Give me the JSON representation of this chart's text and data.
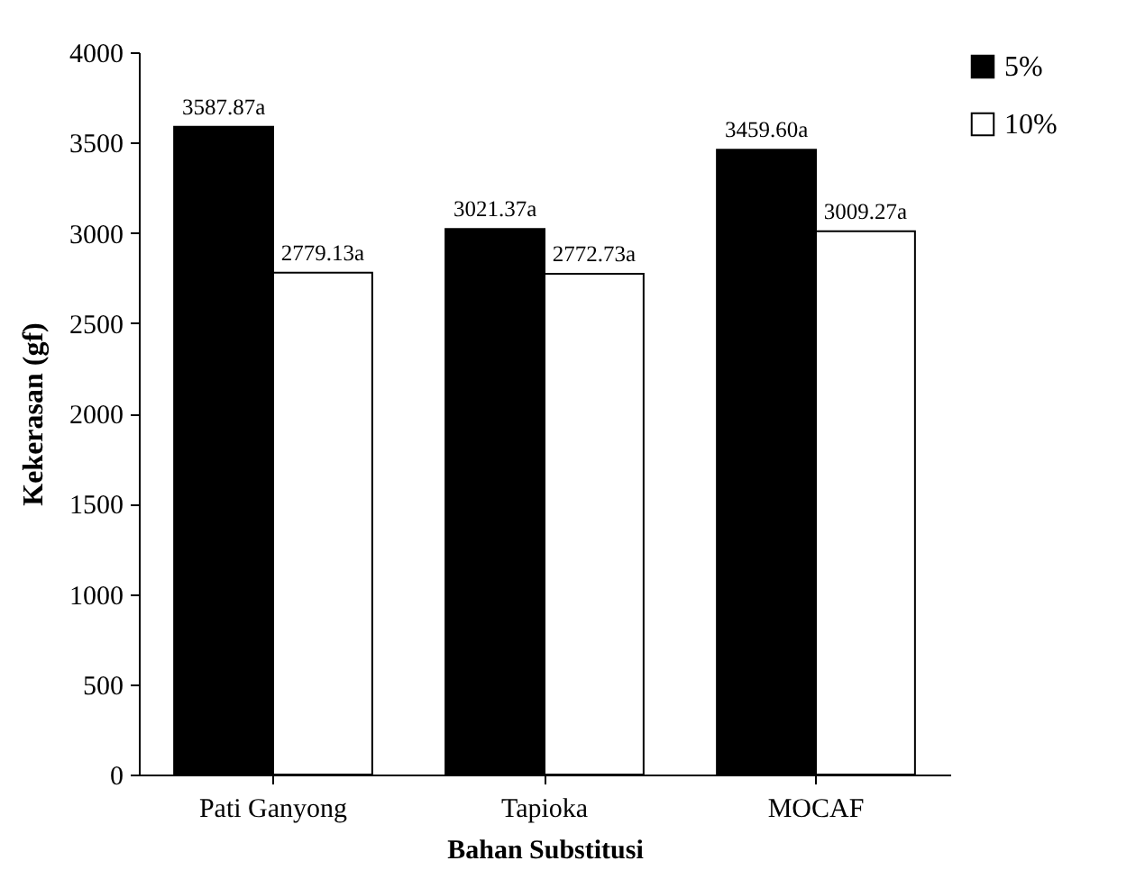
{
  "chart_data": {
    "type": "bar",
    "xlabel": "Bahan Substitusi",
    "ylabel": "Kekerasan (gf)",
    "categories": [
      "Pati Ganyong",
      "Tapioka",
      "MOCAF"
    ],
    "series": [
      {
        "name": "5%",
        "color": "#000000",
        "values": [
          3587.87,
          3021.37,
          3459.6
        ],
        "value_labels": [
          "3587.87a",
          "3021.37a",
          "3459.60a"
        ]
      },
      {
        "name": "10%",
        "color": "#ffffff",
        "values": [
          2779.13,
          2772.73,
          3009.27
        ],
        "value_labels": [
          "2779.13a",
          "2772.73a",
          "3009.27a"
        ]
      }
    ],
    "ylim": [
      0,
      4000
    ],
    "yticks": [
      0,
      500,
      1000,
      1500,
      2000,
      2500,
      3000,
      3500,
      4000
    ],
    "grid": false,
    "legend": "right"
  }
}
